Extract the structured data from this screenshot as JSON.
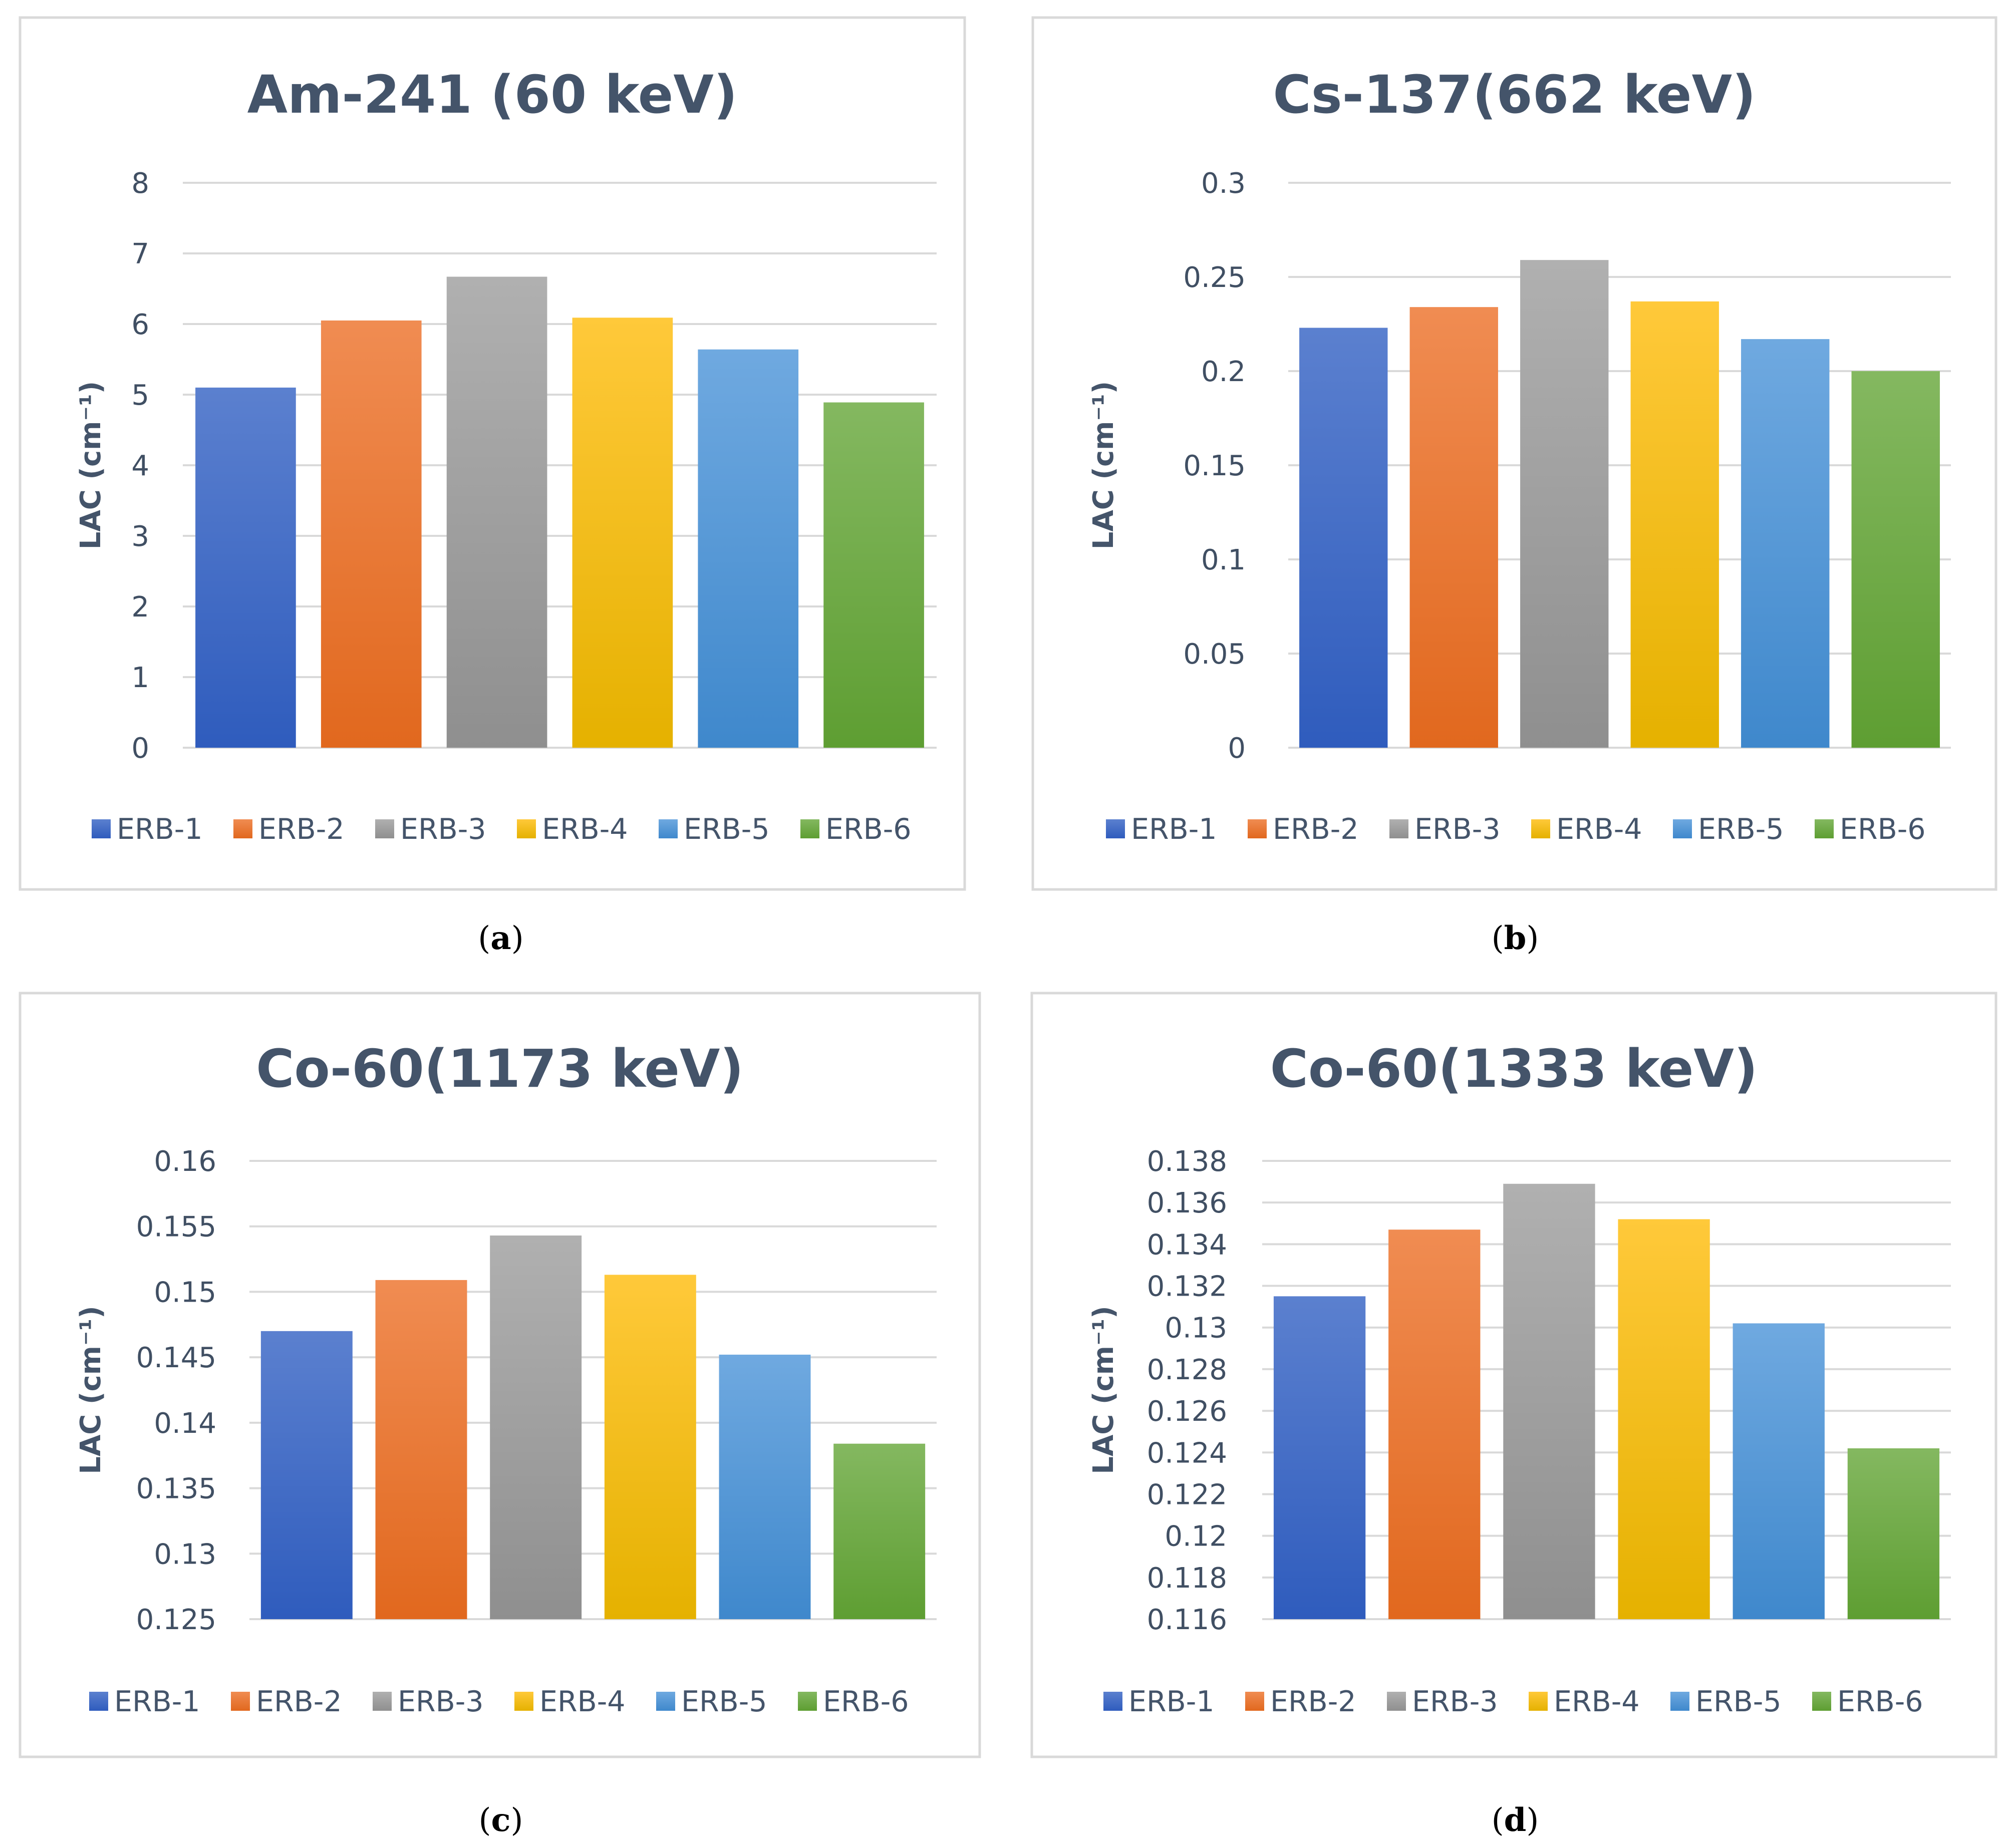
{
  "chart_data": [
    {
      "type": "bar",
      "title": "Am-241 (60 keV)",
      "ylabel": "LAC (cm⁻¹)",
      "xlabel": "",
      "caption": "a",
      "categories": [
        "ERB-1",
        "ERB-2",
        "ERB-3",
        "ERB-4",
        "ERB-5",
        "ERB-6"
      ],
      "values": [
        5.1,
        6.05,
        6.67,
        6.09,
        5.64,
        4.89
      ],
      "ylim": [
        0,
        8
      ],
      "yticks": [
        "0",
        "1",
        "2",
        "3",
        "4",
        "5",
        "6",
        "7",
        "8"
      ],
      "grid": true,
      "legend_position": "bottom"
    },
    {
      "type": "bar",
      "title": "Cs-137(662 keV)",
      "ylabel": "LAC (cm⁻¹)",
      "xlabel": "",
      "caption": "b",
      "categories": [
        "ERB-1",
        "ERB-2",
        "ERB-3",
        "ERB-4",
        "ERB-5",
        "ERB-6"
      ],
      "values": [
        0.223,
        0.234,
        0.259,
        0.237,
        0.217,
        0.2
      ],
      "ylim": [
        0,
        0.3
      ],
      "yticks": [
        "0",
        "0.05",
        "0.1",
        "0.15",
        "0.2",
        "0.25",
        "0.3"
      ],
      "grid": true,
      "legend_position": "bottom"
    },
    {
      "type": "bar",
      "title": "Co-60(1173 keV)",
      "ylabel": "LAC (cm⁻¹)",
      "xlabel": "",
      "caption": "c",
      "categories": [
        "ERB-1",
        "ERB-2",
        "ERB-3",
        "ERB-4",
        "ERB-5",
        "ERB-6"
      ],
      "values": [
        0.147,
        0.1509,
        0.1543,
        0.1513,
        0.1452,
        0.1384
      ],
      "ylim": [
        0.125,
        0.16
      ],
      "yticks": [
        "0.125",
        "0.13",
        "0.135",
        "0.14",
        "0.145",
        "0.15",
        "0.155",
        "0.16"
      ],
      "grid": true,
      "legend_position": "bottom"
    },
    {
      "type": "bar",
      "title": "Co-60(1333 keV)",
      "ylabel": "LAC (cm⁻¹)",
      "xlabel": "",
      "caption": "d",
      "categories": [
        "ERB-1",
        "ERB-2",
        "ERB-3",
        "ERB-4",
        "ERB-5",
        "ERB-6"
      ],
      "values": [
        0.1315,
        0.1347,
        0.1369,
        0.1352,
        0.1302,
        0.1242
      ],
      "ylim": [
        0.116,
        0.138
      ],
      "yticks": [
        "0.116",
        "0.118",
        "0.12",
        "0.122",
        "0.124",
        "0.126",
        "0.128",
        "0.13",
        "0.132",
        "0.134",
        "0.136",
        "0.138"
      ],
      "grid": true,
      "legend_position": "bottom"
    }
  ],
  "colors": {
    "series": [
      {
        "light": "#5b80cf",
        "dark": "#2f5cbd"
      },
      {
        "light": "#f08c52",
        "dark": "#e1681e"
      },
      {
        "light": "#b0b0b0",
        "dark": "#8f8f8f"
      },
      {
        "light": "#ffc93a",
        "dark": "#e5b100"
      },
      {
        "light": "#6fa9e0",
        "dark": "#3f88cc"
      },
      {
        "light": "#84b860",
        "dark": "#5e9e32"
      }
    ]
  }
}
